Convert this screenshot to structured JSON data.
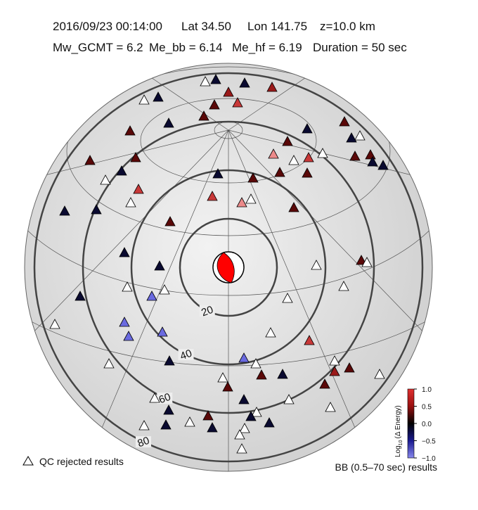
{
  "header": {
    "line1": [
      "2016/09/23  00:14:00",
      "Lat 34.50",
      "Lon 141.75",
      "z=10.0 km"
    ],
    "line2": [
      "Mw_GCMT = 6.2",
      "Me_bb = 6.14",
      "Me_hf = 6.19",
      "Duration = 50 sec"
    ]
  },
  "rings": [
    "20",
    "40",
    "60",
    "80"
  ],
  "colorbar": {
    "label_main": "Log",
    "label_sub": "10",
    "label_rest": "(Δ Energy)",
    "range": [
      -1,
      1
    ],
    "ticks": [
      {
        "value": 1,
        "label": "1.0"
      },
      {
        "value": 0.5,
        "label": "0.5"
      },
      {
        "value": 0,
        "label": "0.0"
      },
      {
        "value": -0.5,
        "label": "−0.5"
      },
      {
        "value": -1,
        "label": "−1.0"
      }
    ]
  },
  "legend": {
    "rejected": "QC rejected results",
    "results": "BB (0.5–70 sec) results"
  }
}
